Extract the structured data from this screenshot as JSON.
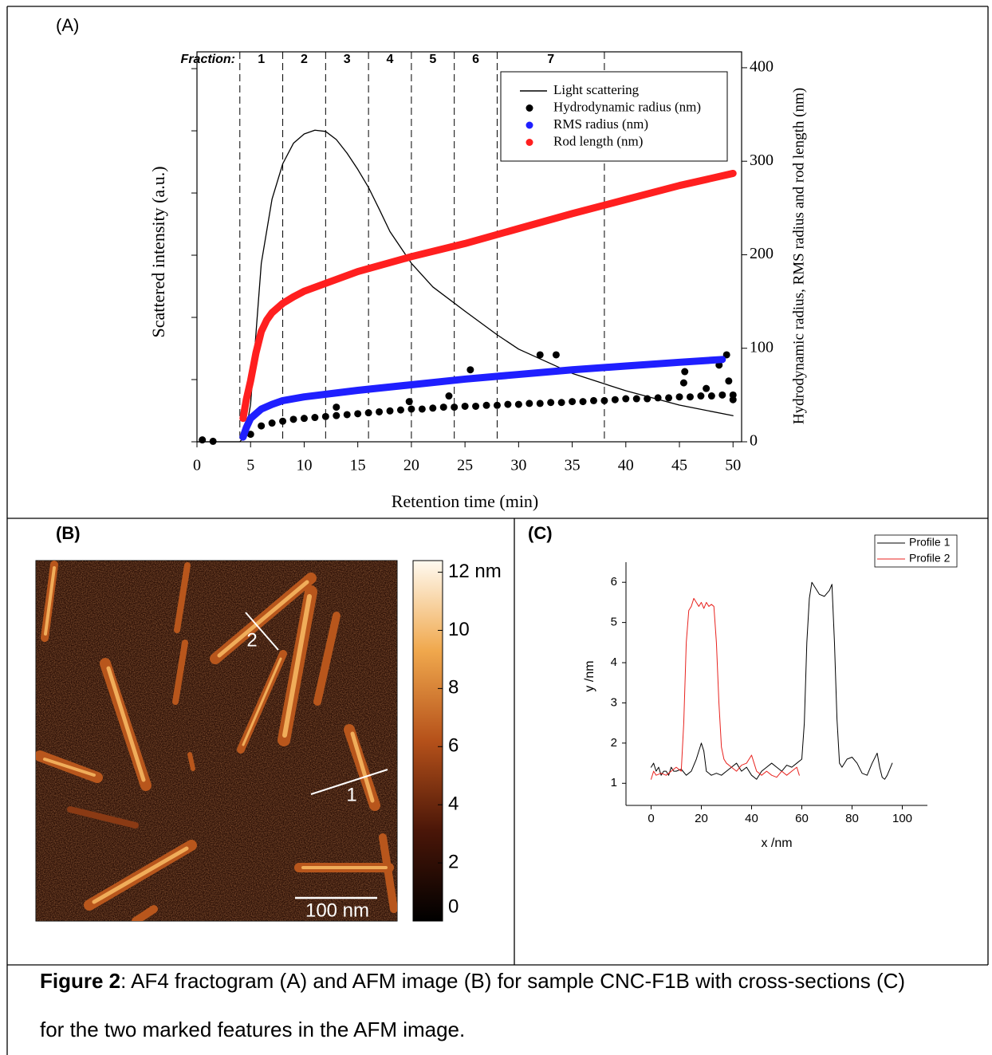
{
  "chart_data": [
    {
      "type": "line",
      "panel_label": "(A)",
      "xlabel": "Retention time (min)",
      "ylabel": "Scattered intensity (a.u.)",
      "y2label": "Hydrodynamic radius, RMS radius and rod length (nm)",
      "xlim": [
        0,
        50.8
      ],
      "xticks": [
        0,
        5,
        10,
        15,
        20,
        25,
        30,
        35,
        40,
        45,
        50
      ],
      "ylim": [
        0,
        6.27
      ],
      "yticks": [
        0,
        1,
        2,
        3,
        4,
        5,
        6
      ],
      "ytick_labels": false,
      "y2lim": [
        0,
        417
      ],
      "y2ticks": [
        0,
        100,
        200,
        300,
        400
      ],
      "fraction_title": "Fraction:",
      "fractions": {
        "labels": [
          "1",
          "2",
          "3",
          "4",
          "5",
          "6",
          "7"
        ],
        "bounds": [
          4,
          8,
          12,
          16,
          20,
          24,
          28,
          38
        ]
      },
      "legend": "upper right",
      "series": [
        {
          "name": "Light scattering",
          "color": "#000000",
          "style": "line",
          "axis": "y",
          "x": [
            0,
            4,
            4.5,
            5,
            6,
            7,
            8,
            9,
            10,
            11,
            12,
            13,
            14,
            15,
            16,
            17,
            18,
            20,
            22,
            25,
            28,
            30,
            35,
            40,
            45,
            50
          ],
          "values": [
            0,
            0,
            0.1,
            0.6,
            2.87,
            3.9,
            4.47,
            4.8,
            4.95,
            5.01,
            4.99,
            4.86,
            4.64,
            4.38,
            4.09,
            3.74,
            3.38,
            2.87,
            2.49,
            2.1,
            1.72,
            1.49,
            1.1,
            0.82,
            0.59,
            0.42
          ]
        },
        {
          "name": "Hydrodynamic radius (nm)",
          "color": "#000000",
          "style": "markers",
          "axis": "y2",
          "x": [
            5,
            6,
            7,
            8,
            9,
            10,
            11,
            12,
            13,
            14,
            15,
            16,
            17,
            18,
            19,
            20,
            21,
            22,
            23,
            24,
            25,
            26,
            27,
            28,
            29,
            30,
            31,
            32,
            33,
            34,
            35,
            36,
            37,
            38,
            39,
            40,
            41,
            42,
            43,
            44,
            45,
            46,
            47,
            48,
            49,
            50,
            0.5,
            1.5,
            13,
            19.8,
            23.5,
            25.5,
            32,
            33.5,
            45.5,
            45.4,
            47.5,
            48.7,
            49.4,
            49.6,
            50
          ],
          "values": [
            8,
            17,
            20,
            22,
            24,
            25,
            26,
            27,
            28,
            29,
            30,
            31,
            32,
            33,
            34,
            35,
            35,
            36,
            37,
            37,
            38,
            38,
            39,
            39,
            40,
            40,
            41,
            41,
            42,
            42,
            43,
            43,
            44,
            44,
            45,
            46,
            46,
            46,
            47,
            47,
            48,
            48,
            49,
            49,
            50,
            50,
            2,
            0.5,
            37,
            43,
            49,
            77,
            93,
            93,
            75,
            63,
            57,
            82,
            93,
            65,
            45
          ]
        },
        {
          "name": "RMS radius (nm)",
          "color": "#1f1fff",
          "style": "dense",
          "axis": "y2",
          "x": [
            4.3,
            4.6,
            5,
            6,
            7,
            8,
            10,
            15,
            20,
            25,
            30,
            35,
            40,
            45,
            49
          ],
          "values": [
            5,
            15,
            25,
            35,
            40,
            44,
            48,
            55,
            61,
            67,
            72,
            77,
            81,
            85,
            88
          ]
        },
        {
          "name": "Rod length (nm)",
          "color": "#ff1f1f",
          "style": "dense",
          "axis": "y2",
          "x": [
            4.3,
            4.6,
            5,
            5.5,
            6,
            6.5,
            7,
            8,
            9,
            10,
            15,
            20,
            25,
            30,
            35,
            40,
            45,
            50
          ],
          "values": [
            25,
            45,
            65,
            95,
            118,
            130,
            138,
            148,
            155,
            161,
            182,
            198,
            212,
            228,
            244,
            259,
            274,
            287
          ]
        }
      ]
    },
    {
      "type": "line",
      "panel_label": "(C)",
      "xlabel": "x /nm",
      "ylabel": "y /nm",
      "xlim": [
        -10,
        110
      ],
      "xticks": [
        0,
        20,
        40,
        60,
        80,
        100
      ],
      "ylim": [
        0.45,
        6.5
      ],
      "yticks": [
        1,
        2,
        3,
        4,
        5,
        6
      ],
      "legend": "upper right",
      "series": [
        {
          "name": "Profile 1",
          "color": "#000000",
          "x": [
            0,
            1,
            2,
            3,
            4,
            5,
            6,
            7,
            8,
            9,
            10,
            12,
            14,
            16,
            18,
            20,
            21,
            22,
            24,
            26,
            28,
            30,
            32,
            34,
            36,
            38,
            40,
            42,
            44,
            46,
            48,
            50,
            52,
            54,
            56,
            58,
            60,
            61,
            62,
            63,
            64,
            65,
            67,
            69,
            71,
            72,
            73,
            74,
            75,
            76,
            78,
            80,
            82,
            84,
            86,
            88,
            90,
            91,
            92,
            93,
            94,
            96
          ],
          "values": [
            1.4,
            1.5,
            1.3,
            1.4,
            1.2,
            1.3,
            1.3,
            1.2,
            1.4,
            1.3,
            1.3,
            1.35,
            1.2,
            1.3,
            1.6,
            2.0,
            1.8,
            1.3,
            1.2,
            1.25,
            1.2,
            1.3,
            1.4,
            1.5,
            1.3,
            1.4,
            1.2,
            1.1,
            1.3,
            1.4,
            1.5,
            1.4,
            1.3,
            1.45,
            1.4,
            1.5,
            1.6,
            2.5,
            4.5,
            5.6,
            6.0,
            5.9,
            5.7,
            5.65,
            5.8,
            5.95,
            4.5,
            2.6,
            1.5,
            1.4,
            1.6,
            1.65,
            1.5,
            1.25,
            1.2,
            1.5,
            1.75,
            1.4,
            1.15,
            1.1,
            1.2,
            1.5
          ]
        },
        {
          "name": "Profile 2",
          "color": "#e8231f",
          "x": [
            0,
            1,
            2,
            4,
            6,
            8,
            10,
            12,
            13,
            14,
            15,
            16,
            17,
            18,
            19,
            20,
            21,
            22,
            23,
            24,
            25,
            26,
            27,
            28,
            29,
            30,
            32,
            34,
            36,
            38,
            39,
            40,
            41,
            42,
            44,
            46,
            48,
            50,
            52,
            54,
            56,
            58,
            59
          ],
          "values": [
            1.1,
            1.3,
            1.2,
            1.25,
            1.2,
            1.3,
            1.4,
            1.3,
            2.5,
            4.5,
            5.3,
            5.4,
            5.6,
            5.5,
            5.4,
            5.5,
            5.35,
            5.5,
            5.4,
            5.45,
            5.4,
            4.5,
            3.0,
            1.9,
            1.6,
            1.5,
            1.4,
            1.3,
            1.45,
            1.5,
            1.6,
            1.7,
            1.5,
            1.3,
            1.2,
            1.3,
            1.2,
            1.15,
            1.3,
            1.2,
            1.3,
            1.4,
            1.2
          ]
        }
      ]
    }
  ],
  "afm_image": {
    "panel_label": "(B)",
    "colorbar": {
      "lim": [
        0,
        12.4
      ],
      "ticks": [
        {
          "value": 12,
          "label": "12 nm"
        },
        10,
        8,
        6,
        4,
        2,
        0
      ]
    },
    "scale_bar": "100 nm",
    "profile_labels": [
      "1",
      "2"
    ]
  },
  "caption": {
    "label": "Figure 2",
    "lines": [
      ": AF4 fractogram (A) and AFM image (B) for sample CNC-F1B with cross-sections (C)",
      "for the two marked features in the AFM image."
    ]
  }
}
